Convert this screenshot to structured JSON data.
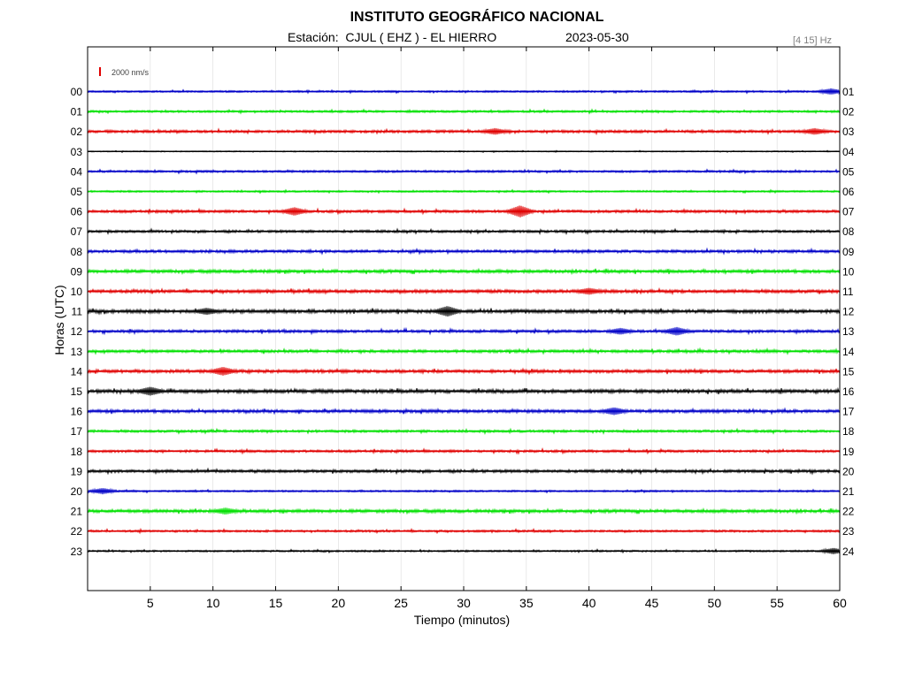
{
  "header": {
    "title": "INSTITUTO GEOGRÁFICO NACIONAL",
    "station_line": "Estación:  CJUL ( EHZ ) - EL HIERRO",
    "date": "2023-05-30",
    "filter": "[4 15] Hz"
  },
  "chart_data": {
    "type": "line",
    "xlabel": "Tiempo (minutos)",
    "ylabel": "Horas (UTC)",
    "xlim": [
      0,
      60
    ],
    "x_ticks": [
      "5",
      "10",
      "15",
      "20",
      "25",
      "30",
      "35",
      "40",
      "45",
      "50",
      "55",
      "60"
    ],
    "scale_label": "2000 nm/s",
    "colors": [
      "#0000c8",
      "#00e000",
      "#e00000",
      "#000000"
    ],
    "rows": [
      {
        "left": "00",
        "right": "01",
        "color": 0,
        "amp": 1,
        "events": [
          {
            "t": 59.3,
            "a": 3
          }
        ]
      },
      {
        "left": "01",
        "right": "02",
        "color": 1,
        "amp": 1.2,
        "events": []
      },
      {
        "left": "02",
        "right": "03",
        "color": 2,
        "amp": 1.5,
        "events": [
          {
            "t": 32.5,
            "a": 3
          },
          {
            "t": 58,
            "a": 3
          }
        ]
      },
      {
        "left": "03",
        "right": "04",
        "color": 3,
        "amp": 0.6,
        "events": []
      },
      {
        "left": "04",
        "right": "05",
        "color": 0,
        "amp": 1.2,
        "events": []
      },
      {
        "left": "05",
        "right": "06",
        "color": 1,
        "amp": 1.0,
        "events": []
      },
      {
        "left": "06",
        "right": "07",
        "color": 2,
        "amp": 1.5,
        "events": [
          {
            "t": 16.5,
            "a": 4
          },
          {
            "t": 34.5,
            "a": 6
          }
        ]
      },
      {
        "left": "07",
        "right": "08",
        "color": 3,
        "amp": 1.4,
        "events": []
      },
      {
        "left": "08",
        "right": "09",
        "color": 0,
        "amp": 1.6,
        "events": []
      },
      {
        "left": "09",
        "right": "10",
        "color": 1,
        "amp": 1.8,
        "events": []
      },
      {
        "left": "10",
        "right": "11",
        "color": 2,
        "amp": 1.8,
        "events": [
          {
            "t": 40,
            "a": 3
          }
        ]
      },
      {
        "left": "11",
        "right": "12",
        "color": 3,
        "amp": 2.0,
        "events": [
          {
            "t": 28.7,
            "a": 5
          },
          {
            "t": 9.5,
            "a": 3
          }
        ]
      },
      {
        "left": "12",
        "right": "13",
        "color": 0,
        "amp": 1.6,
        "events": [
          {
            "t": 47,
            "a": 4
          },
          {
            "t": 42.5,
            "a": 3
          }
        ]
      },
      {
        "left": "13",
        "right": "14",
        "color": 1,
        "amp": 1.6,
        "events": []
      },
      {
        "left": "14",
        "right": "15",
        "color": 2,
        "amp": 1.8,
        "events": [
          {
            "t": 10.8,
            "a": 4
          }
        ]
      },
      {
        "left": "15",
        "right": "16",
        "color": 3,
        "amp": 2.0,
        "events": [
          {
            "t": 5,
            "a": 4
          }
        ]
      },
      {
        "left": "16",
        "right": "17",
        "color": 0,
        "amp": 1.8,
        "events": [
          {
            "t": 42,
            "a": 3.5
          }
        ]
      },
      {
        "left": "17",
        "right": "18",
        "color": 1,
        "amp": 1.4,
        "events": []
      },
      {
        "left": "18",
        "right": "19",
        "color": 2,
        "amp": 1.4,
        "events": []
      },
      {
        "left": "19",
        "right": "20",
        "color": 3,
        "amp": 1.6,
        "events": []
      },
      {
        "left": "20",
        "right": "21",
        "color": 0,
        "amp": 1.0,
        "events": [
          {
            "t": 1.2,
            "a": 3
          }
        ]
      },
      {
        "left": "21",
        "right": "22",
        "color": 1,
        "amp": 1.8,
        "events": [
          {
            "t": 11,
            "a": 3
          }
        ]
      },
      {
        "left": "22",
        "right": "23",
        "color": 2,
        "amp": 1.2,
        "events": []
      },
      {
        "left": "23",
        "right": "24",
        "color": 3,
        "amp": 1.0,
        "events": [
          {
            "t": 59.5,
            "a": 3
          }
        ]
      }
    ]
  }
}
